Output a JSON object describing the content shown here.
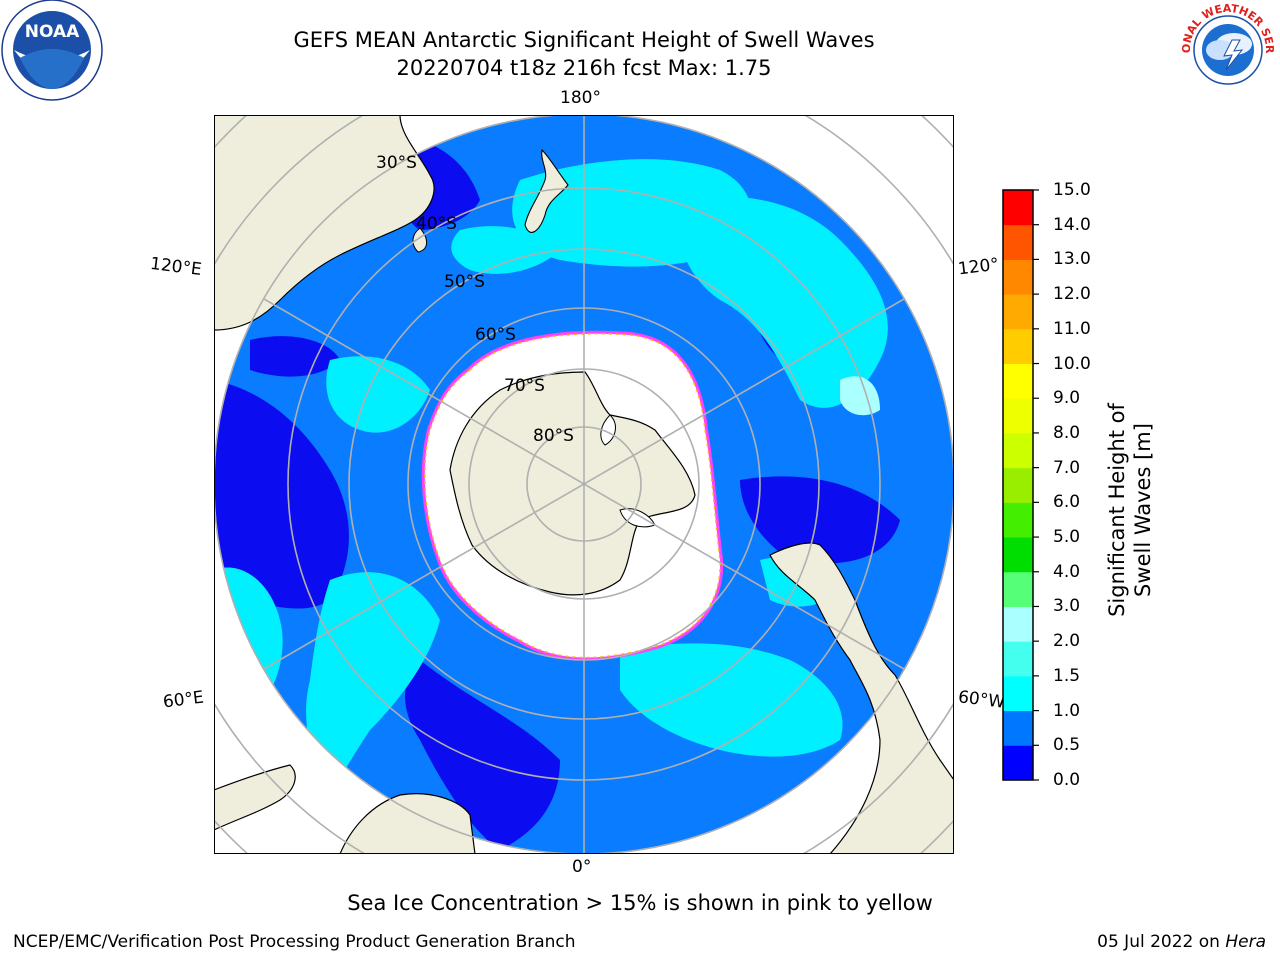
{
  "header": {
    "title_line1": "GEFS MEAN Antarctic Significant Height of Swell Waves",
    "title_line2": "20220704 t18z 216h fcst   Max: 1.75"
  },
  "logos": {
    "left": {
      "icon": "noaa-logo",
      "text": "NOAA"
    },
    "right": {
      "icon": "nws-logo",
      "text": "NATIONAL WEATHER SERVICE"
    }
  },
  "map": {
    "projection": "south-polar-stereographic",
    "longitude_labels": {
      "top": "180°",
      "bottom": "0°",
      "left_upper": "120°E",
      "left_lower": "60°E",
      "right_upper": "120°",
      "right_lower": "60°W"
    },
    "latitude_labels": [
      "30°S",
      "40°S",
      "50°S",
      "60°S",
      "70°S",
      "80°S"
    ],
    "colors": {
      "ocean_base": "#0a7cff",
      "low_swell": "#0c0cf0",
      "mid_swell": "#00f0ff",
      "land": "#efeddb",
      "ice": "#ffffff",
      "ice_edge": "#ff40ff",
      "grid": "#b0b0b0"
    }
  },
  "colorbar": {
    "label": "Significant Height of Swell Waves [m]",
    "ticks": [
      "0.0",
      "0.5",
      "1.0",
      "1.5",
      "2.0",
      "3.0",
      "4.0",
      "5.0",
      "6.0",
      "7.0",
      "8.0",
      "9.0",
      "10.0",
      "11.0",
      "12.0",
      "13.0",
      "14.0",
      "15.0"
    ],
    "colors": [
      "#0000ff",
      "#0077ff",
      "#00ffff",
      "#44ffee",
      "#aaffff",
      "#55ff77",
      "#00dd00",
      "#44ee00",
      "#99ee00",
      "#ccff00",
      "#eeff00",
      "#ffff00",
      "#ffcc00",
      "#ffaa00",
      "#ff8800",
      "#ff5500",
      "#ff0000"
    ]
  },
  "note": "Sea Ice Concentration > 15% is shown in pink to yellow",
  "footer": {
    "left": "NCEP/EMC/Verification Post Processing Product Generation Branch",
    "right_date": "05 Jul 2022 on ",
    "right_host": "Hera"
  }
}
